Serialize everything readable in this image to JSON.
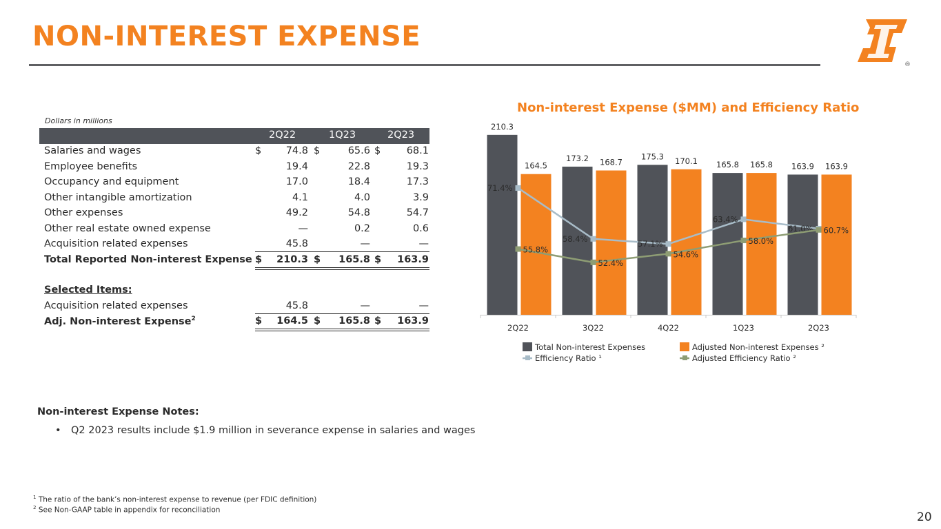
{
  "page": {
    "title": "NON-INTEREST EXPENSE",
    "page_number": "20",
    "brand_color": "#f38220",
    "dark_color": "#505359"
  },
  "table": {
    "caption": "Dollars in millions",
    "columns": [
      "2Q22",
      "1Q23",
      "2Q23"
    ],
    "currency_symbol": "$",
    "rows": [
      {
        "label": "Salaries and wages",
        "values": [
          "74.8",
          "65.6",
          "68.1"
        ]
      },
      {
        "label": "Employee benefits",
        "values": [
          "19.4",
          "22.8",
          "19.3"
        ]
      },
      {
        "label": "Occupancy and equipment",
        "values": [
          "17.0",
          "18.4",
          "17.3"
        ]
      },
      {
        "label": "Other intangible amortization",
        "values": [
          "4.1",
          "4.0",
          "3.9"
        ]
      },
      {
        "label": "Other expenses",
        "values": [
          "49.2",
          "54.8",
          "54.7"
        ]
      },
      {
        "label": "Other real estate owned expense",
        "values": [
          "—",
          "0.2",
          "0.6"
        ]
      },
      {
        "label": "Acquisition related expenses",
        "values": [
          "45.8",
          "—",
          "—"
        ]
      }
    ],
    "total_reported": {
      "label": "Total Reported Non-interest Expense",
      "values": [
        "210.3",
        "165.8",
        "163.9"
      ]
    },
    "selected_items_label": "Selected Items:",
    "selected_rows": [
      {
        "label": "Acquisition related expenses",
        "values": [
          "45.8",
          "—",
          "—"
        ]
      }
    ],
    "adjusted": {
      "label": "Adj. Non-interest Expense",
      "sup": "2",
      "values": [
        "164.5",
        "165.8",
        "163.9"
      ]
    }
  },
  "notes": {
    "title": "Non-interest Expense Notes:",
    "bullet": "•",
    "items": [
      "Q2 2023 results include $1.9 million in severance expense in salaries and wages"
    ]
  },
  "footnotes": [
    {
      "mark": "1",
      "text": "The ratio of the bank’s non-interest expense to revenue (per FDIC definition)"
    },
    {
      "mark": "2",
      "text": "See Non-GAAP table in appendix for reconciliation"
    }
  ],
  "logo": {
    "registered_mark": "®"
  },
  "chart_data": {
    "type": "bar",
    "title": "Non-interest Expense ($MM) and Efficiency Ratio",
    "categories": [
      "2Q22",
      "3Q22",
      "4Q22",
      "1Q23",
      "2Q23"
    ],
    "series": [
      {
        "name": "Total Non-interest Expenses",
        "kind": "bar",
        "color": "#505359",
        "values": [
          210.3,
          173.2,
          175.3,
          165.8,
          163.9
        ],
        "labels": [
          "210.3",
          "173.2",
          "175.3",
          "165.8",
          "163.9"
        ]
      },
      {
        "name": "Adjusted Non-interest Expenses ²",
        "kind": "bar",
        "color": "#f38220",
        "values": [
          164.5,
          168.7,
          170.1,
          165.8,
          163.9
        ],
        "labels": [
          "164.5",
          "168.7",
          "170.1",
          "165.8",
          "163.9"
        ]
      },
      {
        "name": "Efficiency Ratio ¹",
        "kind": "line",
        "color": "#a8bcc8",
        "values": [
          71.4,
          58.4,
          57.1,
          63.4,
          61.0
        ],
        "labels": [
          "71.4%",
          "58.4%",
          "57.1%",
          "63.4%",
          "61.0%"
        ]
      },
      {
        "name": "Adjusted Efficiency Ratio ²",
        "kind": "line",
        "color": "#8e9d74",
        "values": [
          55.8,
          52.4,
          54.6,
          58.0,
          60.7
        ],
        "labels": [
          "55.8%",
          "52.4%",
          "54.6%",
          "58.0%",
          "60.7%"
        ]
      }
    ],
    "bar_ylim": [
      0,
      215
    ],
    "line_ylim": [
      39,
      86
    ],
    "legend": "bottom",
    "grid": false
  }
}
